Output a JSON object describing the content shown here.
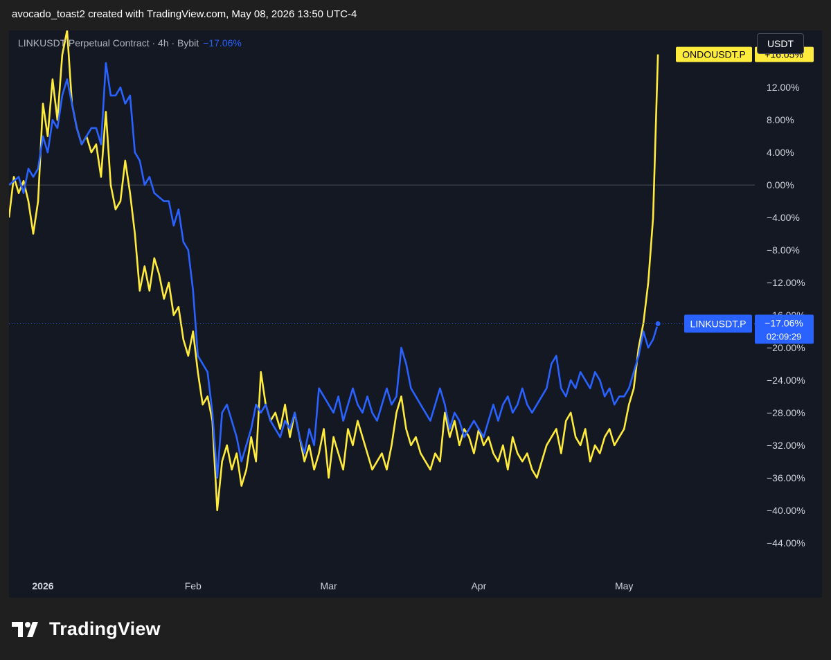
{
  "header": {
    "caption": "avocado_toast2 created with TradingView.com, May 08, 2026 13:50 UTC-4"
  },
  "legend": {
    "symbol_text": "LINKUSDT Perpetual Contract · 4h · Bybit",
    "change": "−17.06%"
  },
  "currency_button": "USDT",
  "footer": {
    "brand": "TradingView",
    "logo_icon": "tradingview-logo-icon"
  },
  "colors": {
    "background": "#141823",
    "link": "#2962ff",
    "ondo": "#ffeb3b"
  },
  "chart_data": {
    "type": "line",
    "x_ticks": [
      "2026",
      "Feb",
      "Mar",
      "Apr",
      "May"
    ],
    "y_ticks": [
      "12.00%",
      "8.00%",
      "4.00%",
      "0.00%",
      "−4.00%",
      "−8.00%",
      "−12.00%",
      "−20.00%",
      "−24.00%",
      "−28.00%",
      "−32.00%",
      "−36.00%",
      "−40.00%",
      "−44.00%"
    ],
    "y_tick_values": [
      12,
      8,
      4,
      0,
      -4,
      -8,
      -12,
      -20,
      -24,
      -28,
      -32,
      -36,
      -40,
      -44
    ],
    "partial_tick": {
      "label": "−16.00%",
      "value": -16
    },
    "ylim": [
      -47,
      19
    ],
    "xlim": [
      "2025-12-25",
      "2026-05-28"
    ],
    "series": [
      {
        "name": "ONDOUSDT.P",
        "last_label": "+16.05%",
        "last_value": 16.05,
        "color": "#ffeb3b",
        "points": [
          [
            "2025-12-25",
            -4
          ],
          [
            "2025-12-26",
            1
          ],
          [
            "2025-12-27",
            -1
          ],
          [
            "2025-12-28",
            0.5
          ],
          [
            "2025-12-29",
            -2
          ],
          [
            "2025-12-30",
            -6
          ],
          [
            "2025-12-31",
            -2
          ],
          [
            "2026-01-01",
            10
          ],
          [
            "2026-01-02",
            6
          ],
          [
            "2026-01-03",
            13
          ],
          [
            "2026-01-04",
            8
          ],
          [
            "2026-01-05",
            16
          ],
          [
            "2026-01-06",
            19
          ],
          [
            "2026-01-07",
            10
          ],
          [
            "2026-01-08",
            7
          ],
          [
            "2026-01-09",
            5
          ],
          [
            "2026-01-10",
            6
          ],
          [
            "2026-01-11",
            4
          ],
          [
            "2026-01-12",
            5
          ],
          [
            "2026-01-13",
            1
          ],
          [
            "2026-01-14",
            9
          ],
          [
            "2026-01-15",
            0
          ],
          [
            "2026-01-16",
            -3
          ],
          [
            "2026-01-17",
            -2
          ],
          [
            "2026-01-18",
            3
          ],
          [
            "2026-01-19",
            -1
          ],
          [
            "2026-01-20",
            -6
          ],
          [
            "2026-01-21",
            -13
          ],
          [
            "2026-01-22",
            -10
          ],
          [
            "2026-01-23",
            -13
          ],
          [
            "2026-01-24",
            -9
          ],
          [
            "2026-01-25",
            -11
          ],
          [
            "2026-01-26",
            -14
          ],
          [
            "2026-01-27",
            -12
          ],
          [
            "2026-01-28",
            -16
          ],
          [
            "2026-01-29",
            -15
          ],
          [
            "2026-01-30",
            -19
          ],
          [
            "2026-01-31",
            -21
          ],
          [
            "2026-02-01",
            -18
          ],
          [
            "2026-02-02",
            -23
          ],
          [
            "2026-02-03",
            -27
          ],
          [
            "2026-02-04",
            -26
          ],
          [
            "2026-02-05",
            -29
          ],
          [
            "2026-02-06",
            -40
          ],
          [
            "2026-02-07",
            -34
          ],
          [
            "2026-02-08",
            -32
          ],
          [
            "2026-02-09",
            -35
          ],
          [
            "2026-02-10",
            -33
          ],
          [
            "2026-02-11",
            -37
          ],
          [
            "2026-02-12",
            -35
          ],
          [
            "2026-02-13",
            -31
          ],
          [
            "2026-02-14",
            -34
          ],
          [
            "2026-02-15",
            -23
          ],
          [
            "2026-02-16",
            -27
          ],
          [
            "2026-02-17",
            -29
          ],
          [
            "2026-02-18",
            -28
          ],
          [
            "2026-02-19",
            -30
          ],
          [
            "2026-02-20",
            -27
          ],
          [
            "2026-02-21",
            -31
          ],
          [
            "2026-02-22",
            -28
          ],
          [
            "2026-02-23",
            -31
          ],
          [
            "2026-02-24",
            -34
          ],
          [
            "2026-02-25",
            -32
          ],
          [
            "2026-02-26",
            -35
          ],
          [
            "2026-02-27",
            -33
          ],
          [
            "2026-02-28",
            -30
          ],
          [
            "2026-03-01",
            -36
          ],
          [
            "2026-03-02",
            -31
          ],
          [
            "2026-03-03",
            -33
          ],
          [
            "2026-03-04",
            -35
          ],
          [
            "2026-03-05",
            -30
          ],
          [
            "2026-03-06",
            -32
          ],
          [
            "2026-03-07",
            -29
          ],
          [
            "2026-03-08",
            -31
          ],
          [
            "2026-03-09",
            -33
          ],
          [
            "2026-03-10",
            -35
          ],
          [
            "2026-03-11",
            -34
          ],
          [
            "2026-03-12",
            -33
          ],
          [
            "2026-03-13",
            -35
          ],
          [
            "2026-03-14",
            -32
          ],
          [
            "2026-03-15",
            -28
          ],
          [
            "2026-03-16",
            -26
          ],
          [
            "2026-03-17",
            -30
          ],
          [
            "2026-03-18",
            -32
          ],
          [
            "2026-03-19",
            -31
          ],
          [
            "2026-03-20",
            -33
          ],
          [
            "2026-03-21",
            -34
          ],
          [
            "2026-03-22",
            -35
          ],
          [
            "2026-03-23",
            -33
          ],
          [
            "2026-03-24",
            -34
          ],
          [
            "2026-03-25",
            -28
          ],
          [
            "2026-03-26",
            -31
          ],
          [
            "2026-03-27",
            -29
          ],
          [
            "2026-03-28",
            -32
          ],
          [
            "2026-03-29",
            -30
          ],
          [
            "2026-03-30",
            -31
          ],
          [
            "2026-03-31",
            -33
          ],
          [
            "2026-04-01",
            -30
          ],
          [
            "2026-04-02",
            -32
          ],
          [
            "2026-04-03",
            -31
          ],
          [
            "2026-04-04",
            -33
          ],
          [
            "2026-04-05",
            -34
          ],
          [
            "2026-04-06",
            -32
          ],
          [
            "2026-04-07",
            -35
          ],
          [
            "2026-04-08",
            -31
          ],
          [
            "2026-04-09",
            -33
          ],
          [
            "2026-04-10",
            -34
          ],
          [
            "2026-04-11",
            -33
          ],
          [
            "2026-04-12",
            -35
          ],
          [
            "2026-04-13",
            -36
          ],
          [
            "2026-04-14",
            -34
          ],
          [
            "2026-04-15",
            -32
          ],
          [
            "2026-04-16",
            -31
          ],
          [
            "2026-04-17",
            -30
          ],
          [
            "2026-04-18",
            -33
          ],
          [
            "2026-04-19",
            -29
          ],
          [
            "2026-04-20",
            -28
          ],
          [
            "2026-04-21",
            -31
          ],
          [
            "2026-04-22",
            -32
          ],
          [
            "2026-04-23",
            -30
          ],
          [
            "2026-04-24",
            -34
          ],
          [
            "2026-04-25",
            -32
          ],
          [
            "2026-04-26",
            -33
          ],
          [
            "2026-04-27",
            -31
          ],
          [
            "2026-04-28",
            -30
          ],
          [
            "2026-04-29",
            -32
          ],
          [
            "2026-04-30",
            -31
          ],
          [
            "2026-05-01",
            -30
          ],
          [
            "2026-05-02",
            -27
          ],
          [
            "2026-05-03",
            -25
          ],
          [
            "2026-05-04",
            -20
          ],
          [
            "2026-05-05",
            -17
          ],
          [
            "2026-05-06",
            -12
          ],
          [
            "2026-05-07",
            -4
          ],
          [
            "2026-05-08",
            16.05
          ]
        ]
      },
      {
        "name": "LINKUSDT.P",
        "last_label": "−17.06%",
        "countdown": "02:09:29",
        "last_value": -17.06,
        "color": "#2962ff",
        "points": [
          [
            "2025-12-25",
            0
          ],
          [
            "2025-12-26",
            0.5
          ],
          [
            "2025-12-27",
            1
          ],
          [
            "2025-12-28",
            -1
          ],
          [
            "2025-12-29",
            2
          ],
          [
            "2025-12-30",
            1
          ],
          [
            "2025-12-31",
            2
          ],
          [
            "2026-01-01",
            6
          ],
          [
            "2026-01-02",
            4
          ],
          [
            "2026-01-03",
            8
          ],
          [
            "2026-01-04",
            7
          ],
          [
            "2026-01-05",
            11
          ],
          [
            "2026-01-06",
            13
          ],
          [
            "2026-01-07",
            10
          ],
          [
            "2026-01-08",
            7
          ],
          [
            "2026-01-09",
            5
          ],
          [
            "2026-01-10",
            6
          ],
          [
            "2026-01-11",
            7
          ],
          [
            "2026-01-12",
            7
          ],
          [
            "2026-01-13",
            5
          ],
          [
            "2026-01-14",
            15
          ],
          [
            "2026-01-15",
            11
          ],
          [
            "2026-01-16",
            11
          ],
          [
            "2026-01-17",
            12
          ],
          [
            "2026-01-18",
            10
          ],
          [
            "2026-01-19",
            11
          ],
          [
            "2026-01-20",
            4
          ],
          [
            "2026-01-21",
            3
          ],
          [
            "2026-01-22",
            0
          ],
          [
            "2026-01-23",
            1
          ],
          [
            "2026-01-24",
            -1
          ],
          [
            "2026-01-25",
            -1.5
          ],
          [
            "2026-01-26",
            -2
          ],
          [
            "2026-01-27",
            -2
          ],
          [
            "2026-01-28",
            -5
          ],
          [
            "2026-01-29",
            -3
          ],
          [
            "2026-01-30",
            -7
          ],
          [
            "2026-01-31",
            -8
          ],
          [
            "2026-02-01",
            -13
          ],
          [
            "2026-02-02",
            -21
          ],
          [
            "2026-02-03",
            -22
          ],
          [
            "2026-02-04",
            -23
          ],
          [
            "2026-02-05",
            -28
          ],
          [
            "2026-02-06",
            -36
          ],
          [
            "2026-02-07",
            -28
          ],
          [
            "2026-02-08",
            -27
          ],
          [
            "2026-02-09",
            -29
          ],
          [
            "2026-02-10",
            -31
          ],
          [
            "2026-02-11",
            -34
          ],
          [
            "2026-02-12",
            -32
          ],
          [
            "2026-02-13",
            -30
          ],
          [
            "2026-02-14",
            -27
          ],
          [
            "2026-02-15",
            -28
          ],
          [
            "2026-02-16",
            -27
          ],
          [
            "2026-02-17",
            -29
          ],
          [
            "2026-02-18",
            -30
          ],
          [
            "2026-02-19",
            -31
          ],
          [
            "2026-02-20",
            -29
          ],
          [
            "2026-02-21",
            -30
          ],
          [
            "2026-02-22",
            -28
          ],
          [
            "2026-02-23",
            -31
          ],
          [
            "2026-02-24",
            -33
          ],
          [
            "2026-02-25",
            -30
          ],
          [
            "2026-02-26",
            -32
          ],
          [
            "2026-02-27",
            -25
          ],
          [
            "2026-02-28",
            -26
          ],
          [
            "2026-03-01",
            -27
          ],
          [
            "2026-03-02",
            -28
          ],
          [
            "2026-03-03",
            -26
          ],
          [
            "2026-03-04",
            -29
          ],
          [
            "2026-03-05",
            -27
          ],
          [
            "2026-03-06",
            -25
          ],
          [
            "2026-03-07",
            -27
          ],
          [
            "2026-03-08",
            -28
          ],
          [
            "2026-03-09",
            -26
          ],
          [
            "2026-03-10",
            -28
          ],
          [
            "2026-03-11",
            -29
          ],
          [
            "2026-03-12",
            -27
          ],
          [
            "2026-03-13",
            -25
          ],
          [
            "2026-03-14",
            -27
          ],
          [
            "2026-03-15",
            -26
          ],
          [
            "2026-03-16",
            -20
          ],
          [
            "2026-03-17",
            -22
          ],
          [
            "2026-03-18",
            -25
          ],
          [
            "2026-03-19",
            -26
          ],
          [
            "2026-03-20",
            -27
          ],
          [
            "2026-03-21",
            -28
          ],
          [
            "2026-03-22",
            -29
          ],
          [
            "2026-03-23",
            -27
          ],
          [
            "2026-03-24",
            -25
          ],
          [
            "2026-03-25",
            -27
          ],
          [
            "2026-03-26",
            -30
          ],
          [
            "2026-03-27",
            -28
          ],
          [
            "2026-03-28",
            -29
          ],
          [
            "2026-03-29",
            -31
          ],
          [
            "2026-03-30",
            -30
          ],
          [
            "2026-03-31",
            -29
          ],
          [
            "2026-04-01",
            -30
          ],
          [
            "2026-04-02",
            -31
          ],
          [
            "2026-04-03",
            -29
          ],
          [
            "2026-04-04",
            -27
          ],
          [
            "2026-04-05",
            -29
          ],
          [
            "2026-04-06",
            -27
          ],
          [
            "2026-04-07",
            -26
          ],
          [
            "2026-04-08",
            -28
          ],
          [
            "2026-04-09",
            -27
          ],
          [
            "2026-04-10",
            -25
          ],
          [
            "2026-04-11",
            -27
          ],
          [
            "2026-04-12",
            -28
          ],
          [
            "2026-04-13",
            -27
          ],
          [
            "2026-04-14",
            -26
          ],
          [
            "2026-04-15",
            -25
          ],
          [
            "2026-04-16",
            -22
          ],
          [
            "2026-04-17",
            -21
          ],
          [
            "2026-04-18",
            -25
          ],
          [
            "2026-04-19",
            -26
          ],
          [
            "2026-04-20",
            -24
          ],
          [
            "2026-04-21",
            -25
          ],
          [
            "2026-04-22",
            -23
          ],
          [
            "2026-04-23",
            -24
          ],
          [
            "2026-04-24",
            -25
          ],
          [
            "2026-04-25",
            -23
          ],
          [
            "2026-04-26",
            -24
          ],
          [
            "2026-04-27",
            -26
          ],
          [
            "2026-04-28",
            -25
          ],
          [
            "2026-04-29",
            -27
          ],
          [
            "2026-04-30",
            -26
          ],
          [
            "2026-05-01",
            -26
          ],
          [
            "2026-05-02",
            -25
          ],
          [
            "2026-05-03",
            -23
          ],
          [
            "2026-05-04",
            -21
          ],
          [
            "2026-05-05",
            -18
          ],
          [
            "2026-05-06",
            -20
          ],
          [
            "2026-05-07",
            -19
          ],
          [
            "2026-05-08",
            -17.06
          ]
        ]
      }
    ]
  }
}
